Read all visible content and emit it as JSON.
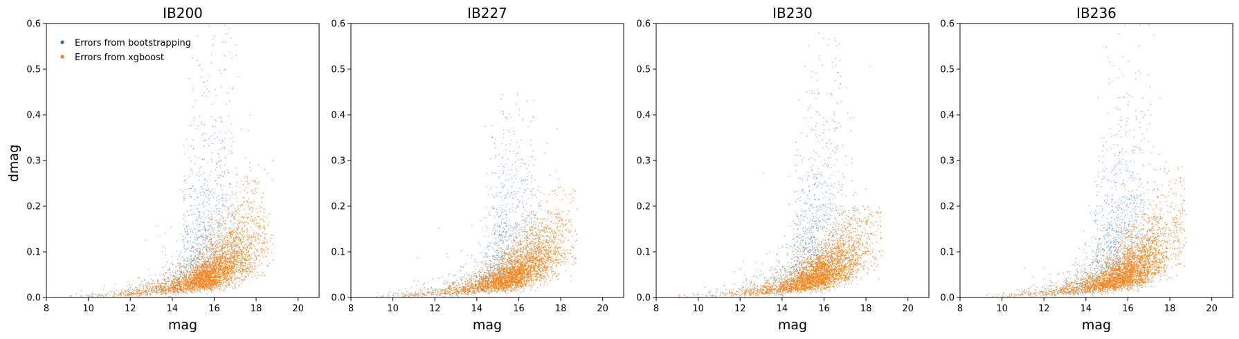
{
  "chart_data": [
    {
      "type": "scatter",
      "title": "IB200",
      "xlabel": "mag",
      "ylabel": "dmag",
      "xlim": [
        8,
        21
      ],
      "ylim": [
        0,
        0.6
      ],
      "xticks": [
        "8",
        "10",
        "12",
        "14",
        "16",
        "18",
        "20"
      ],
      "yticks": [
        "0.0",
        "0.1",
        "0.2",
        "0.3",
        "0.4",
        "0.5",
        "0.6"
      ],
      "grid": false,
      "legend": {
        "placement": "top-left",
        "entries": [
          "Errors from bootstrapping",
          "Errors from xgboost"
        ]
      },
      "series": [
        {
          "name": "Errors from bootstrapping",
          "color": "#1f77b4",
          "cloud": {
            "mag_peak": 15.7,
            "mag_spread": 0.9,
            "dmag_at_peak": 0.16,
            "dmag_max": 0.6,
            "n": 1400
          }
        },
        {
          "name": "Errors from xgboost",
          "color": "#ff7f0e",
          "cloud": {
            "mag_peak": 16.3,
            "mag_spread": 1.1,
            "dmag_at_peak": 0.05,
            "dmag_max": 0.3,
            "n": 2800
          }
        }
      ]
    },
    {
      "type": "scatter",
      "title": "IB227",
      "xlabel": "mag",
      "ylabel": "",
      "xlim": [
        8,
        21
      ],
      "ylim": [
        0,
        0.6
      ],
      "xticks": [
        "8",
        "10",
        "12",
        "14",
        "16",
        "18",
        "20"
      ],
      "yticks": [
        "0.0",
        "0.1",
        "0.2",
        "0.3",
        "0.4",
        "0.5",
        "0.6"
      ],
      "grid": false,
      "series": [
        {
          "name": "Errors from bootstrapping",
          "color": "#1f77b4",
          "cloud": {
            "mag_peak": 15.6,
            "mag_spread": 0.9,
            "dmag_at_peak": 0.13,
            "dmag_max": 0.45,
            "n": 1200
          }
        },
        {
          "name": "Errors from xgboost",
          "color": "#ff7f0e",
          "cloud": {
            "mag_peak": 16.2,
            "mag_spread": 1.1,
            "dmag_at_peak": 0.04,
            "dmag_max": 0.25,
            "n": 2800
          }
        }
      ]
    },
    {
      "type": "scatter",
      "title": "IB230",
      "xlabel": "mag",
      "ylabel": "",
      "xlim": [
        8,
        21
      ],
      "ylim": [
        0,
        0.6
      ],
      "xticks": [
        "8",
        "10",
        "12",
        "14",
        "16",
        "18",
        "20"
      ],
      "yticks": [
        "0.0",
        "0.1",
        "0.2",
        "0.3",
        "0.4",
        "0.5",
        "0.6"
      ],
      "grid": false,
      "series": [
        {
          "name": "Errors from bootstrapping",
          "color": "#1f77b4",
          "cloud": {
            "mag_peak": 15.7,
            "mag_spread": 0.9,
            "dmag_at_peak": 0.12,
            "dmag_max": 0.58,
            "n": 1300
          }
        },
        {
          "name": "Errors from xgboost",
          "color": "#ff7f0e",
          "cloud": {
            "mag_peak": 16.2,
            "mag_spread": 1.1,
            "dmag_at_peak": 0.04,
            "dmag_max": 0.2,
            "n": 2800
          }
        }
      ]
    },
    {
      "type": "scatter",
      "title": "IB236",
      "xlabel": "mag",
      "ylabel": "",
      "xlim": [
        8,
        21
      ],
      "ylim": [
        0,
        0.6
      ],
      "xticks": [
        "8",
        "10",
        "12",
        "14",
        "16",
        "18",
        "20"
      ],
      "yticks": [
        "0.0",
        "0.1",
        "0.2",
        "0.3",
        "0.4",
        "0.5",
        "0.6"
      ],
      "grid": false,
      "series": [
        {
          "name": "Errors from bootstrapping",
          "color": "#1f77b4",
          "cloud": {
            "mag_peak": 15.6,
            "mag_spread": 0.9,
            "dmag_at_peak": 0.17,
            "dmag_max": 0.6,
            "n": 1400
          }
        },
        {
          "name": "Errors from xgboost",
          "color": "#ff7f0e",
          "cloud": {
            "mag_peak": 16.3,
            "mag_spread": 1.1,
            "dmag_at_peak": 0.05,
            "dmag_max": 0.3,
            "n": 2800
          }
        }
      ]
    }
  ]
}
